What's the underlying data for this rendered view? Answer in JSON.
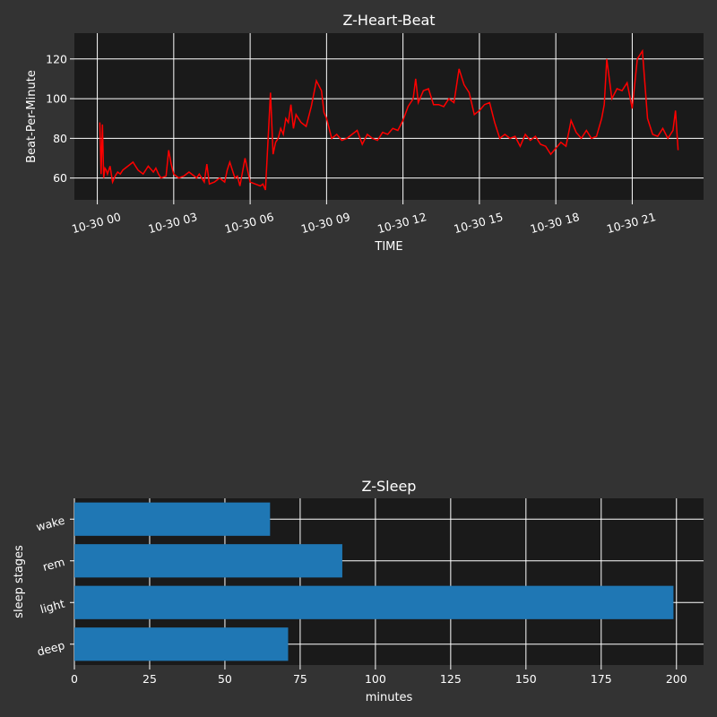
{
  "colors": {
    "figure_bg": "#333333",
    "axes_bg": "#1a1a1a",
    "heart_line": "#ff0000",
    "bar": "#1f77b4",
    "text": "#ffffff"
  },
  "chart_data": [
    {
      "type": "line",
      "title": "Z-Heart-Beat",
      "xlabel": "TIME",
      "ylabel": "Beat-Per-Minute",
      "xlim_hours": [
        -0.9,
        23.8
      ],
      "ylim": [
        49,
        133
      ],
      "grid": true,
      "xticks": [
        {
          "hour": 0,
          "label": "10-30 00"
        },
        {
          "hour": 3,
          "label": "10-30 03"
        },
        {
          "hour": 6,
          "label": "10-30 06"
        },
        {
          "hour": 9,
          "label": "10-30 09"
        },
        {
          "hour": 12,
          "label": "10-30 12"
        },
        {
          "hour": 15,
          "label": "10-30 15"
        },
        {
          "hour": 18,
          "label": "10-30 18"
        },
        {
          "hour": 21,
          "label": "10-30 21"
        }
      ],
      "yticks": [
        60,
        80,
        100,
        120
      ],
      "series": [
        {
          "color": "#ff0000",
          "x": [
            0.1,
            0.15,
            0.2,
            0.25,
            0.3,
            0.35,
            0.4,
            0.5,
            0.6,
            0.7,
            0.8,
            0.9,
            1.0,
            1.2,
            1.4,
            1.5,
            1.6,
            1.8,
            2.0,
            2.2,
            2.3,
            2.4,
            2.5,
            2.7,
            2.8,
            2.9,
            3.0,
            3.2,
            3.4,
            3.6,
            3.8,
            3.9,
            4.0,
            4.2,
            4.3,
            4.4,
            4.6,
            4.8,
            5.0,
            5.1,
            5.2,
            5.4,
            5.5,
            5.6,
            5.8,
            6.0,
            6.2,
            6.4,
            6.5,
            6.6,
            6.8,
            6.9,
            7.0,
            7.1,
            7.2,
            7.3,
            7.4,
            7.5,
            7.6,
            7.7,
            7.8,
            8.0,
            8.2,
            8.4,
            8.6,
            8.8,
            8.9,
            9.0,
            9.2,
            9.4,
            9.6,
            9.8,
            10.0,
            10.2,
            10.4,
            10.6,
            10.8,
            11.0,
            11.2,
            11.4,
            11.6,
            11.8,
            12.0,
            12.2,
            12.4,
            12.5,
            12.6,
            12.8,
            13.0,
            13.2,
            13.4,
            13.6,
            13.8,
            14.0,
            14.2,
            14.4,
            14.6,
            14.8,
            15.0,
            15.2,
            15.4,
            15.6,
            15.8,
            16.0,
            16.2,
            16.4,
            16.6,
            16.8,
            17.0,
            17.2,
            17.4,
            17.6,
            17.8,
            18.0,
            18.2,
            18.4,
            18.6,
            18.8,
            19.0,
            19.2,
            19.4,
            19.6,
            19.8,
            19.9,
            20.0,
            20.2,
            20.4,
            20.6,
            20.8,
            21.0,
            21.2,
            21.4,
            21.6,
            21.8,
            22.0,
            22.2,
            22.4,
            22.6,
            22.7,
            22.8
          ],
          "values": [
            88,
            62,
            87,
            60,
            65,
            64,
            62,
            66,
            58,
            61,
            63,
            62,
            64,
            66,
            68,
            66,
            64,
            62,
            66,
            63,
            65,
            62,
            60,
            61,
            74,
            67,
            62,
            60,
            61,
            63,
            61,
            60,
            62,
            58,
            67,
            57,
            58,
            60,
            58,
            64,
            68,
            60,
            61,
            56,
            70,
            58,
            57,
            56,
            57,
            54,
            103,
            72,
            78,
            80,
            85,
            82,
            90,
            88,
            97,
            85,
            92,
            88,
            86,
            96,
            109,
            104,
            93,
            90,
            80,
            82,
            79,
            80,
            82,
            84,
            77,
            82,
            80,
            79,
            83,
            82,
            85,
            84,
            89,
            96,
            100,
            110,
            98,
            104,
            105,
            97,
            97,
            96,
            100,
            98,
            115,
            107,
            103,
            92,
            94,
            97,
            98,
            88,
            80,
            82,
            80,
            81,
            76,
            82,
            79,
            81,
            77,
            76,
            72,
            75,
            78,
            76,
            89,
            83,
            80,
            84,
            80,
            81,
            90,
            97,
            120,
            100,
            105,
            104,
            108,
            95,
            120,
            124,
            90,
            82,
            81,
            85,
            80,
            84,
            94,
            74
          ]
        }
      ]
    },
    {
      "type": "bar",
      "orientation": "horizontal",
      "title": "Z-Sleep",
      "xlabel": "minutes",
      "ylabel": "sleep stages",
      "xlim": [
        0,
        209
      ],
      "grid": true,
      "xticks": [
        0,
        25,
        50,
        75,
        100,
        125,
        150,
        175,
        200
      ],
      "categories": [
        "deep",
        "light",
        "rem",
        "wake"
      ],
      "values": [
        71,
        199,
        89,
        65
      ],
      "color": "#1f77b4"
    }
  ]
}
